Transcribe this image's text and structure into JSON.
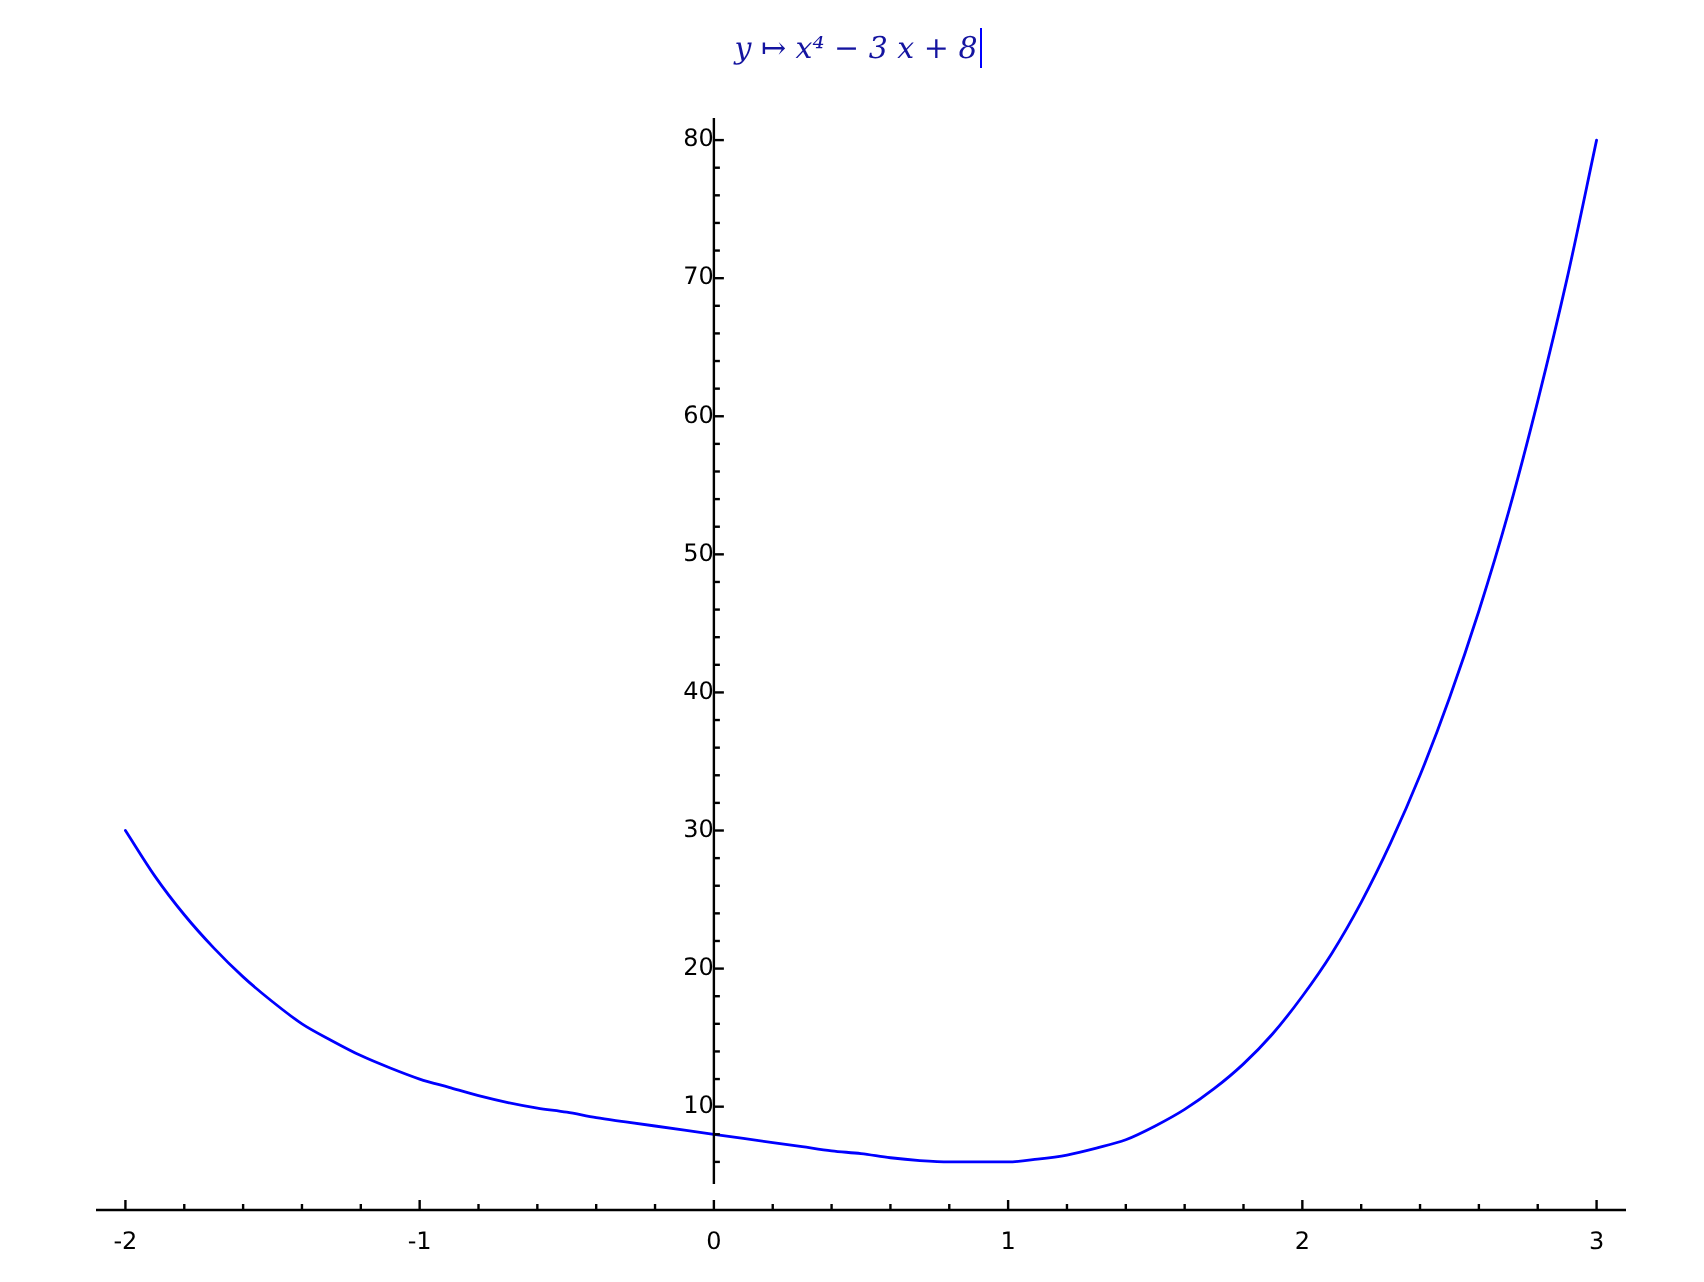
{
  "chart_data": {
    "type": "line",
    "title": "y ↦ x⁴ − 3 x + 8",
    "x": [
      -2,
      -1.9,
      -1.8,
      -1.7,
      -1.6,
      -1.5,
      -1.4,
      -1.3,
      -1.2,
      -1.1,
      -1,
      -0.9,
      -0.8,
      -0.7,
      -0.6,
      -0.5,
      -0.4,
      -0.3,
      -0.2,
      -0.1,
      0,
      0.1,
      0.2,
      0.3,
      0.4,
      0.5,
      0.6,
      0.7,
      0.8,
      0.9,
      1,
      1.1,
      1.2,
      1.3,
      1.4,
      1.5,
      1.6,
      1.7,
      1.8,
      1.9,
      2,
      2.1,
      2.2,
      2.3,
      2.4,
      2.5,
      2.6,
      2.7,
      2.8,
      2.9,
      3
    ],
    "series": [
      {
        "color": "#0000ff",
        "values": [
          30,
          26.7,
          23.9,
          21.5,
          19.4,
          17.6,
          16.0,
          14.8,
          13.7,
          12.8,
          12,
          11.4,
          10.8,
          10.3,
          9.9,
          9.6,
          9.2,
          8.9,
          8.6,
          8.3,
          8,
          7.7,
          7.4,
          7.1,
          6.8,
          6.6,
          6.3,
          6.1,
          6.0,
          6.0,
          6,
          6.2,
          6.5,
          7.0,
          7.6,
          8.6,
          9.8,
          11.3,
          13.1,
          15.3,
          18,
          21.1,
          24.8,
          29.1,
          34.0,
          39.6,
          45.9,
          53.0,
          61.1,
          70.0,
          80
        ]
      }
    ],
    "xlim": [
      -2.1,
      3.1
    ],
    "ylim": [
      4.4,
      81.6
    ],
    "xticks": [
      -2,
      {
        "value": -1.8,
        "label": null
      },
      {
        "value": -1.6,
        "label": null
      },
      {
        "value": -1.4,
        "label": null
      },
      {
        "value": -1.2,
        "label": null
      },
      -1,
      {
        "value": -0.8,
        "label": null
      },
      {
        "value": -0.6,
        "label": null
      },
      {
        "value": -0.4,
        "label": null
      },
      {
        "value": -0.2,
        "label": null
      },
      0,
      {
        "value": 0.2,
        "label": null
      },
      {
        "value": 0.4,
        "label": null
      },
      {
        "value": 0.6,
        "label": null
      },
      {
        "value": 0.8,
        "label": null
      },
      1,
      {
        "value": 1.2,
        "label": null
      },
      {
        "value": 1.4,
        "label": null
      },
      {
        "value": 1.6,
        "label": null
      },
      {
        "value": 1.8,
        "label": null
      },
      2,
      {
        "value": 2.2,
        "label": null
      },
      {
        "value": 2.4,
        "label": null
      },
      {
        "value": 2.6,
        "label": null
      },
      {
        "value": 2.8,
        "label": null
      },
      3
    ],
    "yticks": [
      {
        "value": 6,
        "label": null
      },
      {
        "value": 8,
        "label": null
      },
      10,
      {
        "value": 12,
        "label": null
      },
      {
        "value": 14,
        "label": null
      },
      {
        "value": 16,
        "label": null
      },
      {
        "value": 18,
        "label": null
      },
      20,
      {
        "value": 22,
        "label": null
      },
      {
        "value": 24,
        "label": null
      },
      {
        "value": 26,
        "label": null
      },
      {
        "value": 28,
        "label": null
      },
      30,
      {
        "value": 32,
        "label": null
      },
      {
        "value": 34,
        "label": null
      },
      {
        "value": 36,
        "label": null
      },
      {
        "value": 38,
        "label": null
      },
      40,
      {
        "value": 42,
        "label": null
      },
      {
        "value": 44,
        "label": null
      },
      {
        "value": 46,
        "label": null
      },
      {
        "value": 48,
        "label": null
      },
      50,
      {
        "value": 52,
        "label": null
      },
      {
        "value": 54,
        "label": null
      },
      {
        "value": 56,
        "label": null
      },
      {
        "value": 58,
        "label": null
      },
      60,
      {
        "value": 62,
        "label": null
      },
      {
        "value": 64,
        "label": null
      },
      {
        "value": 66,
        "label": null
      },
      {
        "value": 68,
        "label": null
      },
      70,
      {
        "value": 72,
        "label": null
      },
      {
        "value": 74,
        "label": null
      },
      {
        "value": 76,
        "label": null
      },
      {
        "value": 78,
        "label": null
      },
      80
    ]
  }
}
